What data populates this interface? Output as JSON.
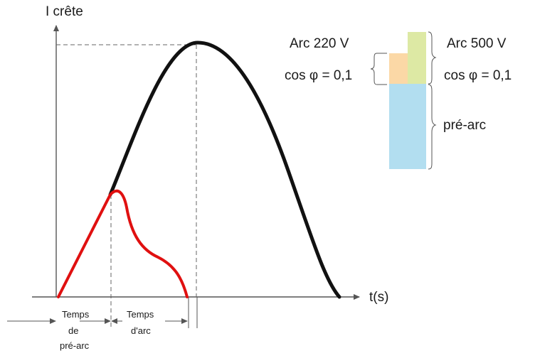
{
  "labels": {
    "y_axis": "I crête",
    "x_axis": "t(s)",
    "arc_220": "Arc 220 V",
    "arc_500": "Arc 500 V",
    "cos_left": "cos φ = 0,1",
    "cos_right": "cos φ = 0,1",
    "pre_arc": "pré-arc",
    "temps_prearc": [
      "Temps",
      "de",
      "pré-arc"
    ],
    "temps_arc": [
      "Temps",
      "d'arc"
    ]
  },
  "colors": {
    "black_curve": "#111111",
    "red_curve": "#e01010",
    "arc_220_bar": "#fbd8a6",
    "arc_500_bar": "#dde9a4",
    "pre_arc_bar": "#b2def0",
    "axis": "#555555"
  }
}
